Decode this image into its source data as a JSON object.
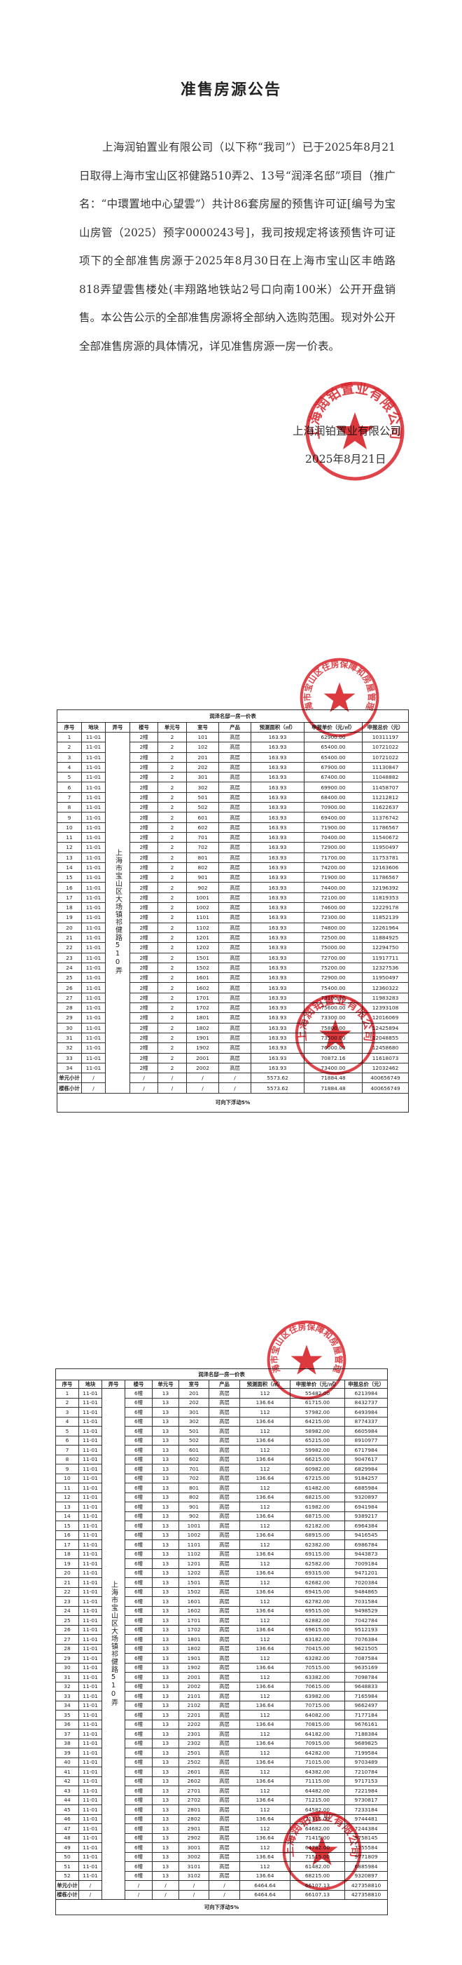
{
  "announcement": {
    "title": "准售房源公告",
    "body": "上海润铂置业有限公司（以下称“我司”）已于2025年8月21日取得上海市宝山区祁健路510弄2、13号“润泽名邸”项目（推广名：“中環置地中心望雲”）共计86套房屋的预售许可证[编号为宝山房管（2025）预字0000243号]，我司按规定将该预售许可证项下的全部准售房源于2025年8月30日在上海市宝山区丰皓路818弄望雲售楼处(丰翔路地铁站2号口向南100米）公开开盘销售。本公告公示的全部准售房源将全部纳入选购范围。现对外公开全部准售房源的具体情况，详见准售房源一房一价表。",
    "signature_company": "上海润铂置业有限公司",
    "signature_date": "2025年8月21日"
  },
  "stamps": {
    "developer": "上海润铂置业有限公司",
    "authority": "上海市宝山区住房保障和房屋管理局",
    "color": "#d8232a"
  },
  "headers": [
    "序号",
    "地块",
    "弄号",
    "楼号",
    "单元号",
    "室号",
    "产品",
    "预测面积（㎡）",
    "申报单价（元/㎡）",
    "申报总价（元）"
  ],
  "tables": [
    {
      "caption": "润泽名邸一房一价表",
      "lane": "上海市宝山区大场镇祁健路510弄",
      "plot": "11-01",
      "building": "2幢",
      "unit": "2",
      "product": "高层",
      "rows": [
        [
          "1",
          "101",
          "163.93",
          "62900.00",
          "10311197"
        ],
        [
          "2",
          "102",
          "163.93",
          "65400.00",
          "10721022"
        ],
        [
          "3",
          "201",
          "163.93",
          "65400.00",
          "10721022"
        ],
        [
          "4",
          "202",
          "163.93",
          "67900.00",
          "11130847"
        ],
        [
          "5",
          "301",
          "163.93",
          "67400.00",
          "11048882"
        ],
        [
          "6",
          "302",
          "163.93",
          "69900.00",
          "11458707"
        ],
        [
          "7",
          "501",
          "163.93",
          "68400.00",
          "11212812"
        ],
        [
          "8",
          "502",
          "163.93",
          "70900.00",
          "11622637"
        ],
        [
          "9",
          "601",
          "163.93",
          "69400.00",
          "11376742"
        ],
        [
          "10",
          "602",
          "163.93",
          "71900.00",
          "11786567"
        ],
        [
          "11",
          "701",
          "163.93",
          "70400.00",
          "11540672"
        ],
        [
          "12",
          "702",
          "163.93",
          "72900.00",
          "11950497"
        ],
        [
          "13",
          "801",
          "163.93",
          "71700.00",
          "11753781"
        ],
        [
          "14",
          "802",
          "163.93",
          "74200.00",
          "12163606"
        ],
        [
          "15",
          "901",
          "163.93",
          "71900.00",
          "11786567"
        ],
        [
          "16",
          "902",
          "163.93",
          "74400.00",
          "12196392"
        ],
        [
          "17",
          "1001",
          "163.93",
          "72100.00",
          "11819353"
        ],
        [
          "18",
          "1002",
          "163.93",
          "74600.00",
          "12229178"
        ],
        [
          "19",
          "1101",
          "163.93",
          "72300.00",
          "11852139"
        ],
        [
          "20",
          "1102",
          "163.93",
          "74800.00",
          "12261964"
        ],
        [
          "21",
          "1201",
          "163.93",
          "72500.00",
          "11884925"
        ],
        [
          "22",
          "1202",
          "163.93",
          "75000.00",
          "12294750"
        ],
        [
          "23",
          "1501",
          "163.93",
          "72700.00",
          "11917711"
        ],
        [
          "24",
          "1502",
          "163.93",
          "75200.00",
          "12327536"
        ],
        [
          "25",
          "1601",
          "163.93",
          "72900.00",
          "11950497"
        ],
        [
          "26",
          "1602",
          "163.93",
          "75400.00",
          "12360322"
        ],
        [
          "27",
          "1701",
          "163.93",
          "73100.00",
          "11983283"
        ],
        [
          "28",
          "1702",
          "163.93",
          "75600.00",
          "12393108"
        ],
        [
          "29",
          "1801",
          "163.93",
          "73300.00",
          "12016069"
        ],
        [
          "30",
          "1802",
          "163.93",
          "75800.00",
          "12425894"
        ],
        [
          "31",
          "1901",
          "163.93",
          "73500.00",
          "12048855"
        ],
        [
          "32",
          "1902",
          "163.93",
          "76000.00",
          "12458680"
        ],
        [
          "33",
          "2001",
          "163.93",
          "70872.16",
          "11618073"
        ],
        [
          "34",
          "2002",
          "163.93",
          "73400.00",
          "12032462"
        ]
      ],
      "subtotals": [
        {
          "label": "单元小计",
          "area": "5573.62",
          "price": "71884.48",
          "total": "400656749"
        },
        {
          "label": "楼栋小计",
          "area": "5573.62",
          "price": "71884.48",
          "total": "400656749"
        }
      ],
      "slash": "/",
      "footer": "可向下浮动5%"
    },
    {
      "caption": "润泽名邸一房一价表",
      "lane": "上海市宝山区大场镇祁健路510弄",
      "plot": "11-01",
      "building": "6幢",
      "unit": "13",
      "product": "高层",
      "rows": [
        [
          "1",
          "201",
          "112",
          "55482.00",
          "6213984"
        ],
        [
          "2",
          "202",
          "136.64",
          "61715.00",
          "8432737"
        ],
        [
          "3",
          "301",
          "112",
          "57982.00",
          "6493984"
        ],
        [
          "4",
          "302",
          "136.64",
          "64215.00",
          "8774337"
        ],
        [
          "5",
          "501",
          "112",
          "58982.00",
          "6605984"
        ],
        [
          "6",
          "502",
          "136.64",
          "65215.00",
          "8910977"
        ],
        [
          "7",
          "601",
          "112",
          "59982.00",
          "6717984"
        ],
        [
          "8",
          "602",
          "136.64",
          "66215.00",
          "9047617"
        ],
        [
          "9",
          "701",
          "112",
          "60982.00",
          "6829984"
        ],
        [
          "10",
          "702",
          "136.64",
          "67215.00",
          "9184257"
        ],
        [
          "11",
          "801",
          "112",
          "61482.00",
          "6885984"
        ],
        [
          "12",
          "802",
          "136.64",
          "68215.00",
          "9320897"
        ],
        [
          "13",
          "901",
          "112",
          "61982.00",
          "6941984"
        ],
        [
          "14",
          "902",
          "136.64",
          "68715.00",
          "9389217"
        ],
        [
          "15",
          "1001",
          "112",
          "62182.00",
          "6964384"
        ],
        [
          "16",
          "1002",
          "136.64",
          "68915.00",
          "9416545"
        ],
        [
          "17",
          "1101",
          "112",
          "62382.00",
          "6986784"
        ],
        [
          "18",
          "1102",
          "136.64",
          "69115.00",
          "9443873"
        ],
        [
          "19",
          "1201",
          "112",
          "62582.00",
          "7009184"
        ],
        [
          "20",
          "1202",
          "136.64",
          "69315.00",
          "9471201"
        ],
        [
          "21",
          "1501",
          "112",
          "62682.00",
          "7020384"
        ],
        [
          "22",
          "1502",
          "136.64",
          "69415.00",
          "9484865"
        ],
        [
          "23",
          "1601",
          "112",
          "62782.00",
          "7031584"
        ],
        [
          "24",
          "1602",
          "136.64",
          "69515.00",
          "9498529"
        ],
        [
          "25",
          "1701",
          "112",
          "62882.00",
          "7042784"
        ],
        [
          "26",
          "1702",
          "136.64",
          "69615.00",
          "9512193"
        ],
        [
          "27",
          "1801",
          "112",
          "63182.00",
          "7076384"
        ],
        [
          "28",
          "1802",
          "136.64",
          "70415.00",
          "9621505"
        ],
        [
          "29",
          "1901",
          "112",
          "63282.00",
          "7087584"
        ],
        [
          "30",
          "1902",
          "136.64",
          "70515.00",
          "9635169"
        ],
        [
          "31",
          "2001",
          "112",
          "63382.00",
          "7098784"
        ],
        [
          "32",
          "2002",
          "136.64",
          "70615.00",
          "9648833"
        ],
        [
          "33",
          "2101",
          "112",
          "63982.00",
          "7165984"
        ],
        [
          "34",
          "2102",
          "136.64",
          "70715.00",
          "9662497"
        ],
        [
          "35",
          "2201",
          "112",
          "64082.00",
          "7177184"
        ],
        [
          "36",
          "2202",
          "136.64",
          "70815.00",
          "9676161"
        ],
        [
          "37",
          "2301",
          "112",
          "64182.00",
          "7188384"
        ],
        [
          "38",
          "2302",
          "136.64",
          "70915.00",
          "9689825"
        ],
        [
          "39",
          "2501",
          "112",
          "64282.00",
          "7199584"
        ],
        [
          "40",
          "2502",
          "136.64",
          "71015.00",
          "9703489"
        ],
        [
          "41",
          "2601",
          "112",
          "64382.00",
          "7210784"
        ],
        [
          "42",
          "2602",
          "136.64",
          "71115.00",
          "9717153"
        ],
        [
          "43",
          "2701",
          "112",
          "64482.00",
          "7221984"
        ],
        [
          "44",
          "2702",
          "136.64",
          "71215.00",
          "9730817"
        ],
        [
          "45",
          "2801",
          "112",
          "64582.00",
          "7233184"
        ],
        [
          "46",
          "2802",
          "136.64",
          "71315.00",
          "9744481"
        ],
        [
          "47",
          "2901",
          "112",
          "64682.00",
          "7244384"
        ],
        [
          "48",
          "2902",
          "136.64",
          "71415.00",
          "9758145"
        ],
        [
          "49",
          "3001",
          "112",
          "64782.00",
          "7255584"
        ],
        [
          "50",
          "3002",
          "136.64",
          "71515.00",
          "9771809"
        ],
        [
          "51",
          "3101",
          "112",
          "61482.00",
          "6885984"
        ],
        [
          "52",
          "3102",
          "136.64",
          "68215.00",
          "9320897"
        ]
      ],
      "subtotals": [
        {
          "label": "单元小计",
          "area": "6464.64",
          "price": "66107.13",
          "total": "427358810"
        },
        {
          "label": "楼栋小计",
          "area": "6464.64",
          "price": "66107.13",
          "total": "427358810"
        }
      ],
      "slash": "/",
      "footer": "可向下浮动5%"
    }
  ]
}
